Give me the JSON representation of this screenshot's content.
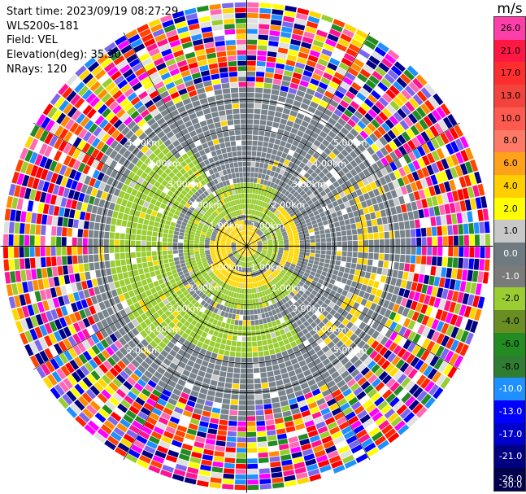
{
  "info": {
    "start_time": "Start time: 2023/09/19 08:27:29",
    "instrument": "WLS200s-181",
    "field": "Field: VEL",
    "elevation": "Elevation(deg): 35.30",
    "nrays": "NRays: 120"
  },
  "colorbar": {
    "unit": "m/s",
    "ticks": [
      "26.0",
      "21.0",
      "17.0",
      "13.0",
      "10.0",
      "8.0",
      "6.0",
      "4.0",
      "2.0",
      "1.0",
      "0.0",
      "-1.0",
      "-2.0",
      "-4.0",
      "-6.0",
      "-8.0",
      "-10.0",
      "-13.0",
      "-17.0",
      "-21.0",
      "-26.0",
      "-30.0"
    ],
    "colors": [
      "#ff3fa9",
      "#ff1744",
      "#ff2e2e",
      "#f2433d",
      "#ff5a50",
      "#ff7a66",
      "#ffa21a",
      "#ffcf00",
      "#ffff00",
      "#c8c8c8",
      "#6f7a80",
      "#7a7a7a",
      "#9acd32",
      "#6b8e23",
      "#228b22",
      "#2e7d32",
      "#1e90ff",
      "#0000ff",
      "#0000cd",
      "#000080",
      "#00004d"
    ]
  },
  "ppi": {
    "range_labels": [
      "1.00km",
      "2.00km",
      "3.00km",
      "4.00km",
      "5.00km"
    ],
    "range_rings_km": [
      1,
      2,
      3,
      4,
      5
    ],
    "max_range_km": 5,
    "nrays": 120
  }
}
